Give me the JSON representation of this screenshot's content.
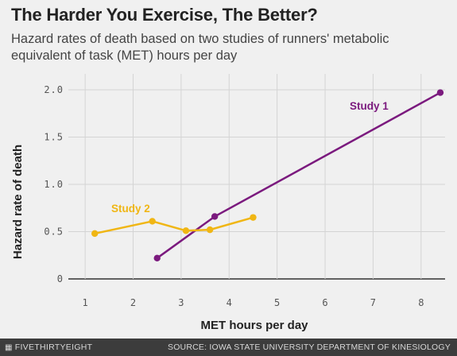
{
  "header": {
    "title": "The Harder You Exercise, The Better?",
    "subtitle": "Hazard rates of death based on two studies of runners' metabolic equivalent of task (MET) hours per day"
  },
  "footer": {
    "logo": "FIVETHIRTYEIGHT",
    "source": "SOURCE: IOWA STATE UNIVERSITY DEPARTMENT OF KINESIOLOGY"
  },
  "chart_data": {
    "type": "line",
    "xlabel": "MET hours per day",
    "ylabel": "Hazard rate of death",
    "xlim": [
      0.65,
      8.5
    ],
    "ylim": [
      0,
      2.0
    ],
    "x_ticks": [
      1,
      2,
      3,
      4,
      5,
      6,
      7,
      8
    ],
    "y_ticks": [
      0,
      0.5,
      1.0,
      1.5,
      2.0
    ],
    "x_tick_labels": [
      "1",
      "2",
      "3",
      "4",
      "5",
      "6",
      "7",
      "8"
    ],
    "y_tick_labels": [
      "0",
      "0.5",
      "1.0",
      "1.5",
      "2.0"
    ],
    "grid": true,
    "series": [
      {
        "name": "Study 1",
        "color": "#7b1a7e",
        "x": [
          2.5,
          3.7,
          8.4
        ],
        "y": [
          0.22,
          0.66,
          1.97
        ]
      },
      {
        "name": "Study 2",
        "color": "#f0b614",
        "x": [
          1.2,
          2.4,
          3.1,
          3.6,
          4.5
        ],
        "y": [
          0.48,
          0.61,
          0.51,
          0.52,
          0.65
        ]
      }
    ]
  }
}
